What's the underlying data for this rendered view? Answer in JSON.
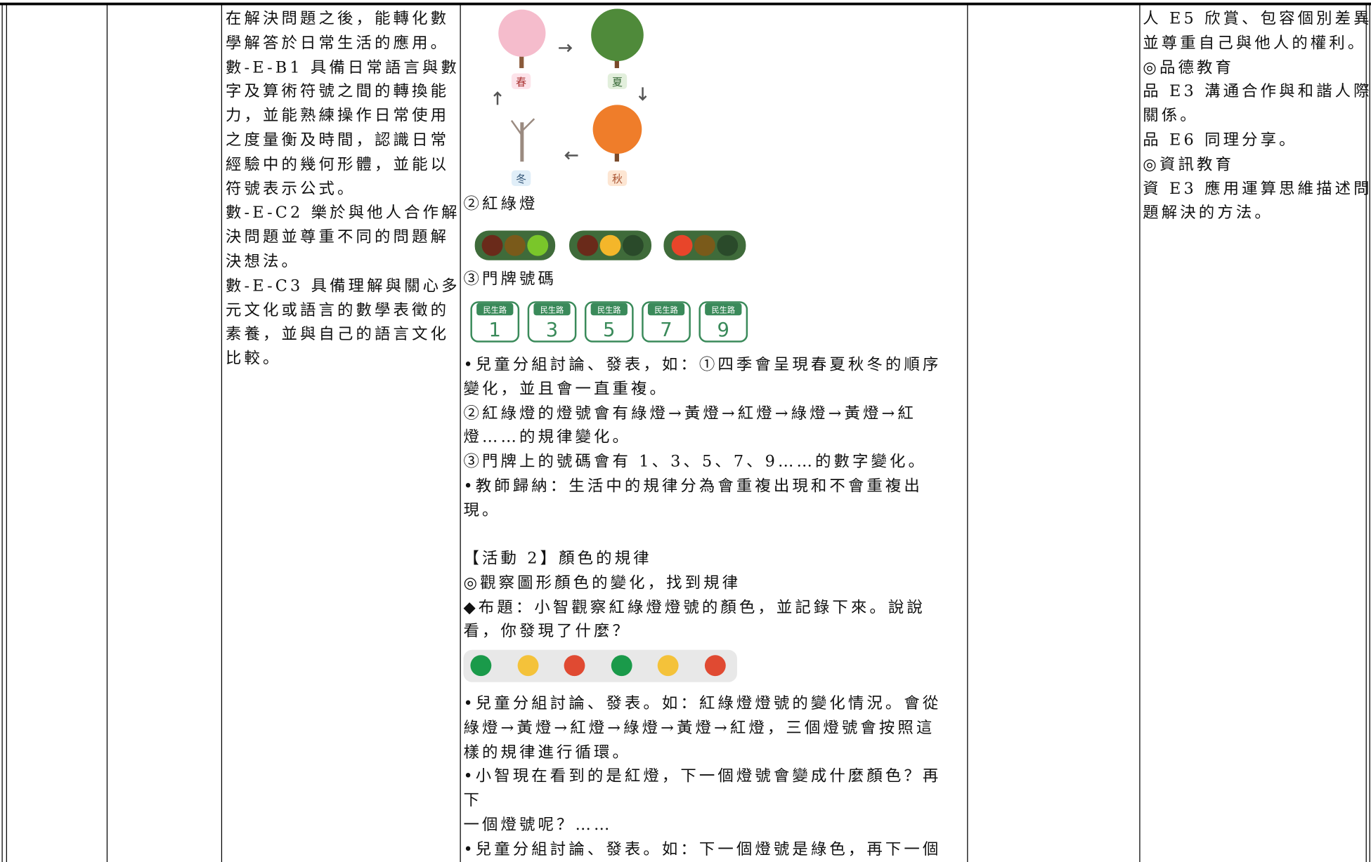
{
  "table": {
    "rows": [
      {
        "competencies": [
          "在解決問題之後，能轉化數",
          "學解答於日常生活的應用。",
          "數-E-B1 具備日常語言與數",
          "字及算術符號之間的轉換能",
          "力，並能熟練操作日常使用",
          "之度量衡及時間，認識日常",
          "經驗中的幾何形體，並能以",
          "符號表示公式。",
          "數-E-C2 樂於與他人合作解",
          "決問題並尊重不同的問題解",
          "決想法。",
          "數-E-C3 具備理解與關心多",
          "元文化或語言的數學表徵的",
          "素養，並與自己的語言文化",
          "比較。"
        ],
        "activity": {
          "season_labels": [
            "春",
            "夏",
            "秋",
            "冬"
          ],
          "traffic_light_heading": "②紅綠燈",
          "door_number_heading": "③門牌號碼",
          "plate_street": "民生路",
          "plate_numbers": [
            "1",
            "3",
            "5",
            "7",
            "9"
          ],
          "discussion": [
            "•兒童分組討論、發表，如：①四季會呈現春夏秋冬的順序",
            "變化，並且會一直重複。",
            "②紅綠燈的燈號會有綠燈→黃燈→紅燈→綠燈→黃燈→紅",
            "燈……的規律變化。",
            "③門牌上的號碼會有 1、3、5、7、9……的數字變化。",
            "•教師歸納：生活中的規律分為會重複出現和不會重複出",
            "現。"
          ],
          "activity2": [
            "【活動 2】顏色的規律",
            "◎觀察圖形顏色的變化，找到規律",
            "◆布題：小智觀察紅綠燈燈號的顏色，並記錄下來。說說",
            "看，你發現了什麼？"
          ],
          "follow_up": [
            "•兒童分組討論、發表。如：紅綠燈燈號的變化情況。會從",
            "綠燈→黃燈→紅燈→綠燈→黃燈→紅燈，三個燈號會按照這",
            "樣的規律進行循環。",
            "•小智現在看到的是紅燈，下一個燈號會變成什麼顏色？再",
            "下",
            "一個燈號呢？……",
            "•兒童分組討論、發表。如：下一個燈號是綠色，再下一個"
          ]
        },
        "issues": [
          "人 E5 欣賞、包容個別差異",
          "並尊重自己與他人的權利。",
          "◎品德教育",
          "品 E3 溝通合作與和諧人際",
          "關係。",
          "品 E6 同理分享。",
          "◎資訊教育",
          "資 E3 應用運算思維描述問",
          "題解決的方法。"
        ]
      }
    ]
  }
}
